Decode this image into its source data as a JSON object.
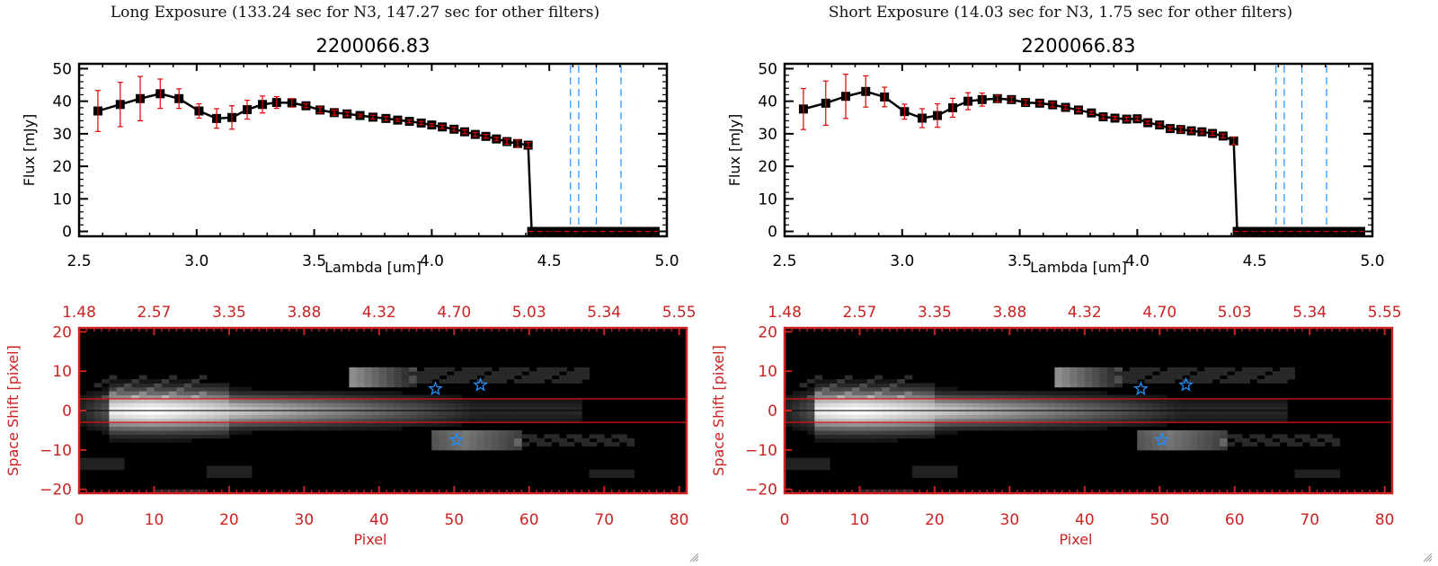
{
  "window": {
    "resize_grip_icon": "resize-grip-icon"
  },
  "panels": [
    {
      "id": "long",
      "exposure_title": "Long Exposure (133.24 sec for N3, 147.27 sec for other filters)",
      "spectrum_title": "2200066.83",
      "chart_data": [
        {
          "type": "line",
          "title": "2200066.83",
          "xlabel": "Lambda [um]",
          "ylabel": "Flux [mJy]",
          "xlim": [
            2.5,
            5.0
          ],
          "ylim": [
            -1.5,
            51.5
          ],
          "xticks": [
            "2.5",
            "3.0",
            "3.5",
            "4.0",
            "4.5",
            "5.0"
          ],
          "xtick_values": [
            2.5,
            3.0,
            3.5,
            4.0,
            4.5,
            5.0
          ],
          "yticks": [
            "0",
            "10",
            "20",
            "30",
            "40",
            "50"
          ],
          "ytick_values": [
            0,
            10,
            20,
            30,
            40,
            50
          ],
          "series": [
            {
              "name": "flux",
              "marker": "square",
              "color": "#000000",
              "errcolor": "#e00000",
              "x": [
                2.58,
                2.675,
                2.76,
                2.845,
                2.925,
                3.01,
                3.085,
                3.15,
                3.215,
                3.28,
                3.34,
                3.405,
                3.465,
                3.525,
                3.585,
                3.64,
                3.695,
                3.75,
                3.805,
                3.855,
                3.905,
                3.955,
                4.0,
                4.045,
                4.095,
                4.14,
                4.185,
                4.23,
                4.275,
                4.32,
                4.365,
                4.41,
                4.425,
                4.46,
                4.495,
                4.53,
                4.565,
                4.6,
                4.635,
                4.67,
                4.705,
                4.74,
                4.775,
                4.81,
                4.845,
                4.88,
                4.915,
                4.95
              ],
              "y": [
                37,
                39,
                40.8,
                42.3,
                40.8,
                37,
                34.7,
                35,
                37.4,
                39,
                39.6,
                39.5,
                38.6,
                37.3,
                36.5,
                36.1,
                35.6,
                35.1,
                34.7,
                34.2,
                33.8,
                33.3,
                32.7,
                32.1,
                31.4,
                30.6,
                29.8,
                29.2,
                28.4,
                27.6,
                27.0,
                26.5,
                0,
                0,
                0,
                0,
                0,
                0,
                0,
                0,
                0,
                0,
                0,
                0,
                0,
                0,
                0,
                0
              ],
              "err": [
                6.3,
                6.8,
                6.8,
                4.5,
                3.0,
                2.2,
                3.0,
                3.6,
                2.9,
                2.6,
                1.8,
                1.3,
                0.6,
                0.9,
                0.8,
                0.6,
                0.4,
                0.6,
                0.6,
                0.4,
                0.4,
                0.5,
                0.4,
                0.5,
                0.6,
                0.6,
                0.6,
                0.6,
                0.5,
                0.8,
                1.1,
                0.8,
                0,
                0,
                0,
                0,
                0,
                0,
                0,
                0,
                0,
                0,
                0,
                0,
                0,
                0,
                0,
                0
              ]
            }
          ],
          "zero_line": {
            "style": "dashed",
            "color": "#e00000",
            "y": 0,
            "x_from": 4.41
          },
          "vlines": {
            "style": "dashed",
            "color": "#1e90ff",
            "x": [
              4.59,
              4.625,
              4.7,
              4.805
            ]
          }
        },
        {
          "type": "heatmap",
          "xlabel": "Pixel",
          "ylabel": "Space Shift [pixel]",
          "xlim": [
            0,
            81
          ],
          "ylim": [
            -21,
            21
          ],
          "xticks": [
            "0",
            "10",
            "20",
            "30",
            "40",
            "50",
            "60",
            "70",
            "80"
          ],
          "xtick_values": [
            0,
            10,
            20,
            30,
            40,
            50,
            60,
            70,
            80
          ],
          "yticks": [
            "20",
            "10",
            "0",
            "-10",
            "-20"
          ],
          "ytick_values": [
            20,
            10,
            0,
            -10,
            -20
          ],
          "top_axis_label_values": [
            "1.48",
            "2.57",
            "3.35",
            "3.88",
            "4.32",
            "4.70",
            "5.03",
            "5.34",
            "5.55"
          ],
          "aperture_lines": [
            3,
            -3
          ],
          "center_line": 0,
          "stars": [
            {
              "x": 47.5,
              "y": 5.5,
              "label": "source-star"
            },
            {
              "x": 53.5,
              "y": 6.5,
              "label": "source-star"
            },
            {
              "x": 50.3,
              "y": -7.5,
              "label": "source-star"
            }
          ],
          "axis_color": "#cc2222",
          "star_color": "#1e90ff"
        }
      ]
    },
    {
      "id": "short",
      "exposure_title": "Short Exposure (14.03 sec for N3, 1.75 sec for other filters)",
      "spectrum_title": "2200066.83",
      "chart_data": [
        {
          "type": "line",
          "title": "2200066.83",
          "xlabel": "Lambda [um]",
          "ylabel": "Flux [mJy]",
          "xlim": [
            2.5,
            5.0
          ],
          "ylim": [
            -1.5,
            51.5
          ],
          "xticks": [
            "2.5",
            "3.0",
            "3.5",
            "4.0",
            "4.5",
            "5.0"
          ],
          "xtick_values": [
            2.5,
            3.0,
            3.5,
            4.0,
            4.5,
            5.0
          ],
          "yticks": [
            "0",
            "10",
            "20",
            "30",
            "40",
            "50"
          ],
          "ytick_values": [
            0,
            10,
            20,
            30,
            40,
            50
          ],
          "series": [
            {
              "name": "flux",
              "marker": "square",
              "color": "#000000",
              "errcolor": "#e00000",
              "x": [
                2.58,
                2.675,
                2.76,
                2.845,
                2.925,
                3.01,
                3.085,
                3.15,
                3.215,
                3.28,
                3.34,
                3.405,
                3.465,
                3.525,
                3.585,
                3.64,
                3.695,
                3.75,
                3.805,
                3.855,
                3.905,
                3.955,
                4.0,
                4.045,
                4.095,
                4.14,
                4.185,
                4.23,
                4.275,
                4.32,
                4.365,
                4.41,
                4.425,
                4.46,
                4.495,
                4.53,
                4.565,
                4.6,
                4.635,
                4.67,
                4.705,
                4.74,
                4.775,
                4.81,
                4.845,
                4.88,
                4.915,
                4.95
              ],
              "y": [
                37.6,
                39.4,
                41.5,
                43,
                41.3,
                36.8,
                34.8,
                35.6,
                38,
                40,
                40.5,
                40.8,
                40.5,
                39.6,
                39.4,
                38.9,
                38.1,
                37.3,
                36.4,
                35.2,
                34.8,
                34.5,
                34.6,
                33.4,
                32.7,
                31.6,
                31.3,
                30.9,
                30.6,
                30.1,
                29.3,
                27.8,
                0,
                0,
                0,
                0,
                0,
                0,
                0,
                0,
                0,
                0,
                0,
                0,
                0,
                0,
                0,
                0
              ],
              "err": [
                6.3,
                6.8,
                6.8,
                4.8,
                3.0,
                2.3,
                2.9,
                3.6,
                2.9,
                2.6,
                2.0,
                1.0,
                0.8,
                0.8,
                0.6,
                0.7,
                0.6,
                0.6,
                0.5,
                0.6,
                0.5,
                0.6,
                0.6,
                0.5,
                0.6,
                0.6,
                0.8,
                0.6,
                0.6,
                0.6,
                0.6,
                1.1,
                0,
                0,
                0,
                0,
                0,
                0,
                0,
                0,
                0,
                0,
                0,
                0,
                0,
                0,
                0,
                0
              ]
            }
          ],
          "zero_line": {
            "style": "dashed",
            "color": "#e00000",
            "y": 0,
            "x_from": 4.41
          },
          "vlines": {
            "style": "dashed",
            "color": "#1e90ff",
            "x": [
              4.59,
              4.625,
              4.7,
              4.805
            ]
          }
        },
        {
          "type": "heatmap",
          "xlabel": "Pixel",
          "ylabel": "Space Shift [pixel]",
          "xlim": [
            0,
            81
          ],
          "ylim": [
            -21,
            21
          ],
          "xticks": [
            "0",
            "10",
            "20",
            "30",
            "40",
            "50",
            "60",
            "70",
            "80"
          ],
          "xtick_values": [
            0,
            10,
            20,
            30,
            40,
            50,
            60,
            70,
            80
          ],
          "yticks": [
            "20",
            "10",
            "0",
            "-10",
            "-20"
          ],
          "ytick_values": [
            20,
            10,
            0,
            -10,
            -20
          ],
          "top_axis_label_values": [
            "1.48",
            "2.57",
            "3.35",
            "3.88",
            "4.32",
            "4.70",
            "5.03",
            "5.34",
            "5.55"
          ],
          "aperture_lines": [
            3,
            -3
          ],
          "center_line": 0,
          "stars": [
            {
              "x": 47.5,
              "y": 5.5,
              "label": "source-star"
            },
            {
              "x": 53.5,
              "y": 6.5,
              "label": "source-star"
            },
            {
              "x": 50.3,
              "y": -7.5,
              "label": "source-star"
            }
          ],
          "axis_color": "#cc2222",
          "star_color": "#1e90ff"
        }
      ]
    }
  ]
}
